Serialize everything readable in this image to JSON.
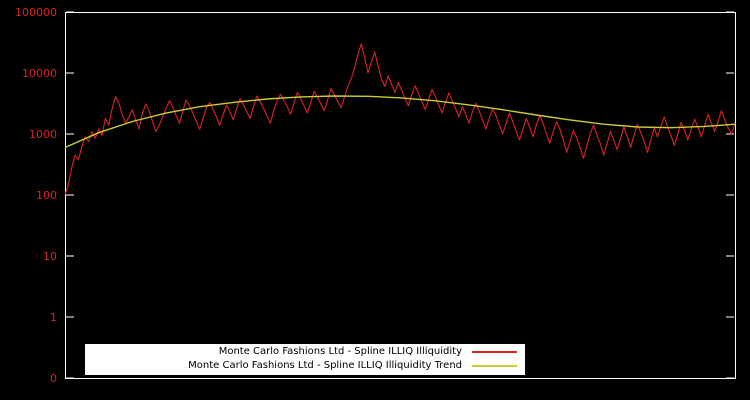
{
  "figure": {
    "background": "#000000",
    "border_color": "#ffffff"
  },
  "axes": {
    "y_scale": "log",
    "y_tick_labels": [
      "100000",
      "10000",
      "1000",
      "100",
      "10",
      "1",
      "0"
    ],
    "tick_color": "#ffffff",
    "label_color": "#dd2222"
  },
  "legend": {
    "background": "#ffffff",
    "text_color": "#000000",
    "entries": [
      {
        "label": "Monte Carlo Fashions Ltd - Spline ILLIQ Illiquidity",
        "color": "#dd2222"
      },
      {
        "label": "Monte Carlo Fashions Ltd - Spline ILLIQ Illiquidity Trend",
        "color": "#cccc33"
      }
    ]
  },
  "chart_data": {
    "type": "line",
    "title": "",
    "xlabel": "",
    "ylabel": "",
    "grid": false,
    "legend_position": "bottom-center",
    "y_axis": {
      "scale": "log",
      "ticks": [
        100000,
        10000,
        1000,
        100,
        10,
        1,
        0
      ],
      "range_log10": [
        -1,
        5
      ]
    },
    "x_range": [
      0,
      199
    ],
    "series": [
      {
        "name": "Monte Carlo Fashions Ltd - Spline ILLIQ Illiquidity",
        "color": "#dd2222",
        "values": [
          100,
          150,
          280,
          450,
          380,
          620,
          900,
          750,
          1100,
          850,
          1200,
          950,
          1800,
          1400,
          2600,
          4100,
          3200,
          2100,
          1500,
          1900,
          2500,
          1700,
          1200,
          2200,
          3100,
          2400,
          1600,
          1100,
          1400,
          1900,
          2600,
          3500,
          2800,
          2000,
          1500,
          2400,
          3600,
          2900,
          2200,
          1600,
          1200,
          1800,
          2700,
          3300,
          2500,
          1900,
          1400,
          2100,
          3000,
          2300,
          1700,
          2600,
          3800,
          3000,
          2300,
          1800,
          2800,
          4200,
          3400,
          2600,
          2000,
          1500,
          2400,
          3500,
          4500,
          3600,
          2800,
          2100,
          3200,
          4800,
          3800,
          2900,
          2200,
          3300,
          5000,
          4000,
          3100,
          2400,
          3600,
          5500,
          4400,
          3400,
          2700,
          4000,
          6000,
          8000,
          12000,
          20000,
          30000,
          18000,
          10000,
          15000,
          22000,
          13000,
          8000,
          6000,
          9000,
          6500,
          4800,
          7000,
          5200,
          3800,
          2900,
          4400,
          6200,
          4600,
          3400,
          2500,
          3700,
          5400,
          4100,
          3000,
          2200,
          3300,
          4700,
          3500,
          2600,
          1900,
          2800,
          2100,
          1500,
          2300,
          3200,
          2400,
          1700,
          1200,
          1800,
          2600,
          2000,
          1400,
          1000,
          1500,
          2200,
          1600,
          1100,
          800,
          1200,
          1800,
          1300,
          900,
          1400,
          2000,
          1500,
          1000,
          700,
          1100,
          1600,
          1200,
          800,
          500,
          750,
          1150,
          850,
          600,
          400,
          650,
          1000,
          1400,
          950,
          700,
          450,
          700,
          1100,
          800,
          550,
          850,
          1300,
          900,
          600,
          950,
          1450,
          1050,
          750,
          500,
          800,
          1250,
          900,
          1350,
          1900,
          1300,
          950,
          650,
          1000,
          1550,
          1150,
          800,
          1200,
          1750,
          1300,
          900,
          1400,
          2100,
          1500,
          1100,
          1650,
          2400,
          1700,
          1250,
          1000,
          1500
        ]
      },
      {
        "name": "Monte Carlo Fashions Ltd - Spline ILLIQ Illiquidity Trend",
        "color": "#cccc33",
        "x": [
          0,
          10,
          20,
          30,
          40,
          50,
          60,
          70,
          80,
          90,
          100,
          110,
          120,
          130,
          140,
          150,
          160,
          170,
          180,
          190,
          199
        ],
        "values": [
          600,
          1050,
          1600,
          2200,
          2800,
          3300,
          3750,
          4050,
          4200,
          4150,
          3900,
          3500,
          3000,
          2500,
          2050,
          1700,
          1450,
          1300,
          1270,
          1330,
          1450
        ]
      }
    ]
  }
}
